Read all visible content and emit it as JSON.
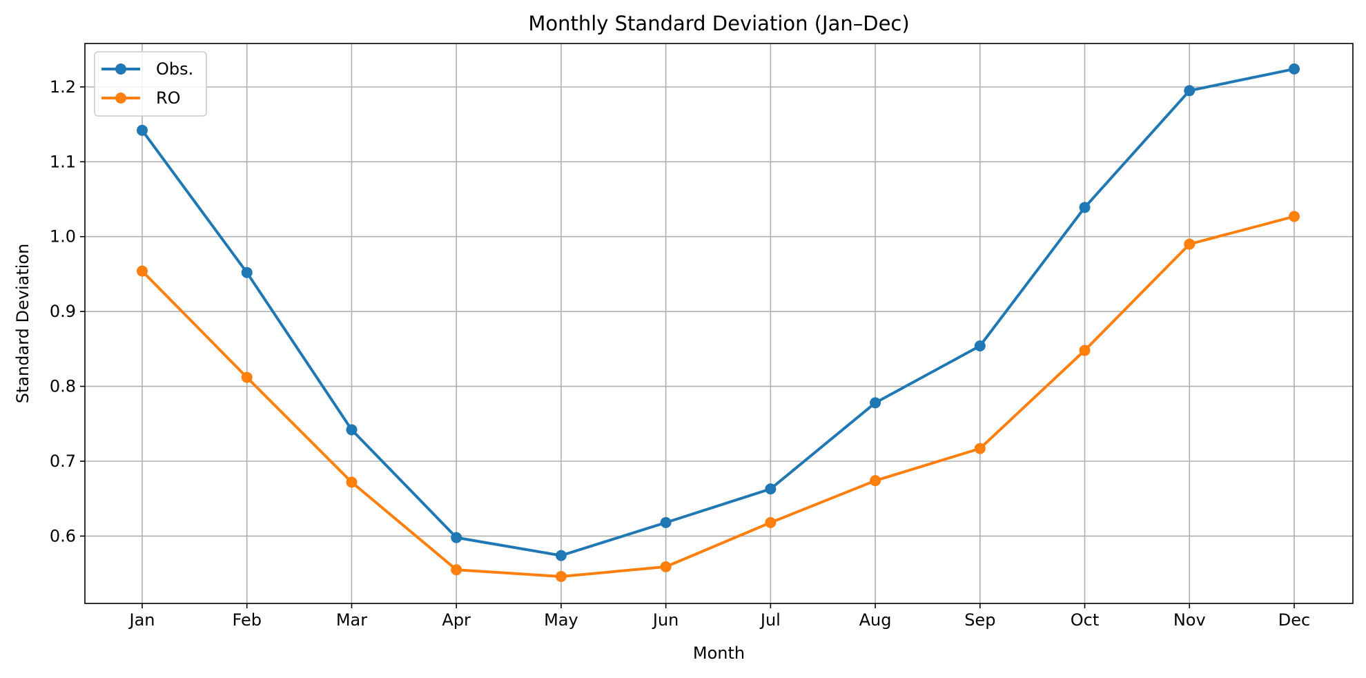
{
  "chart_data": {
    "type": "line",
    "title": "Monthly Standard Deviation (Jan–Dec)",
    "xlabel": "Month",
    "ylabel": "Standard Deviation",
    "categories": [
      "Jan",
      "Feb",
      "Mar",
      "Apr",
      "May",
      "Jun",
      "Jul",
      "Aug",
      "Sep",
      "Oct",
      "Nov",
      "Dec"
    ],
    "ylim": [
      0.51,
      1.258
    ],
    "yticks": [
      0.6,
      0.7,
      0.8,
      0.9,
      1.0,
      1.1,
      1.2
    ],
    "ytick_labels": [
      "0.6",
      "0.7",
      "0.8",
      "0.9",
      "1.0",
      "1.1",
      "1.2"
    ],
    "grid": true,
    "legend_position": "top-left",
    "series": [
      {
        "name": "Obs.",
        "color": "#1f77b4",
        "marker": "circle",
        "values": [
          1.142,
          0.952,
          0.742,
          0.598,
          0.574,
          0.618,
          0.663,
          0.778,
          0.854,
          1.039,
          1.195,
          1.224
        ]
      },
      {
        "name": "RO",
        "color": "#ff7f0e",
        "marker": "circle",
        "values": [
          0.954,
          0.812,
          0.672,
          0.555,
          0.546,
          0.559,
          0.618,
          0.674,
          0.717,
          0.848,
          0.99,
          1.027
        ]
      }
    ]
  }
}
